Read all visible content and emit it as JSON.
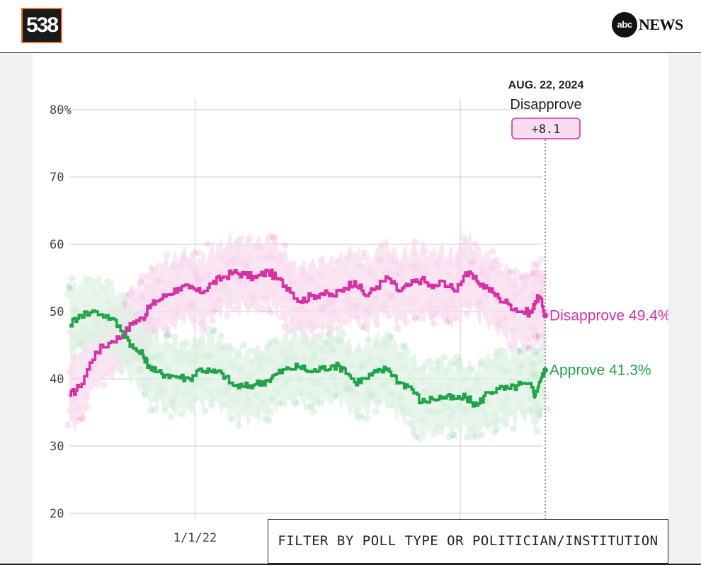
{
  "brand": {
    "logo_text": "538",
    "abc_logo_text": "abc",
    "news_text": "NEWS"
  },
  "filter_button": {
    "label": "FILTER BY POLL TYPE OR POLITICIAN/INSTITUTION"
  },
  "colors": {
    "disapprove": "#d631a5",
    "approve": "#22a34a",
    "disapprove_band": "#f8dcef",
    "approve_band": "#dff1e3",
    "grid": "#cccccc"
  },
  "chart_data": {
    "type": "line",
    "title": "",
    "xlabel": "",
    "ylabel": "",
    "x_range": [
      "2021-01-20",
      "2024-08-22"
    ],
    "ylim": [
      20,
      80
    ],
    "y_ticks": [
      20,
      30,
      40,
      50,
      60,
      70,
      80
    ],
    "y_tick_labels": [
      "20",
      "30",
      "40",
      "50",
      "60",
      "70",
      "80%"
    ],
    "x_ticks": [
      "2022-01-01",
      "2024-01-01"
    ],
    "x_tick_labels": [
      "1/1/22",
      ""
    ],
    "grid": true,
    "annotation": {
      "date": "2024-08-22",
      "date_label": "AUG. 22, 2024",
      "leader": "Disapprove",
      "margin_label": "+8.1"
    },
    "end_labels": [
      {
        "series": "Disapprove",
        "text": "Disapprove 49.4%"
      },
      {
        "series": "Approve",
        "text": "Approve 41.3%"
      }
    ],
    "series": [
      {
        "name": "Disapprove",
        "x": [
          "2021-01-20",
          "2021-02-15",
          "2021-04-01",
          "2021-05-15",
          "2021-06-15",
          "2021-07-15",
          "2021-08-10",
          "2021-08-25",
          "2021-09-15",
          "2021-10-15",
          "2021-11-15",
          "2021-12-15",
          "2022-01-15",
          "2022-02-15",
          "2022-03-15",
          "2022-04-15",
          "2022-05-15",
          "2022-06-15",
          "2022-07-20",
          "2022-08-15",
          "2022-09-15",
          "2022-10-15",
          "2022-11-15",
          "2022-12-15",
          "2023-01-15",
          "2023-02-15",
          "2023-03-15",
          "2023-04-15",
          "2023-05-15",
          "2023-06-15",
          "2023-07-15",
          "2023-08-15",
          "2023-09-15",
          "2023-10-15",
          "2023-11-15",
          "2023-12-15",
          "2024-01-15",
          "2024-02-15",
          "2024-03-15",
          "2024-04-15",
          "2024-05-15",
          "2024-06-15",
          "2024-07-15",
          "2024-07-25",
          "2024-08-05",
          "2024-08-22"
        ],
        "values": [
          37.5,
          38.8,
          44.0,
          45.6,
          46.5,
          48.5,
          49.0,
          50.5,
          51.5,
          52.5,
          53.5,
          53.5,
          52.8,
          54.2,
          55.0,
          55.8,
          55.5,
          55.0,
          56.0,
          54.8,
          53.5,
          51.5,
          52.3,
          52.7,
          52.3,
          53.5,
          54.5,
          52.3,
          53.7,
          55.0,
          53.0,
          54.0,
          54.8,
          53.5,
          54.5,
          53.0,
          55.8,
          54.5,
          53.5,
          52.0,
          51.0,
          50.0,
          49.8,
          51.5,
          52.2,
          49.4
        ]
      },
      {
        "name": "Approve",
        "x": [
          "2021-01-20",
          "2021-02-15",
          "2021-04-01",
          "2021-05-15",
          "2021-06-15",
          "2021-07-15",
          "2021-08-10",
          "2021-08-25",
          "2021-09-15",
          "2021-10-15",
          "2021-11-15",
          "2021-12-15",
          "2022-01-15",
          "2022-02-15",
          "2022-03-15",
          "2022-04-15",
          "2022-05-15",
          "2022-06-15",
          "2022-07-20",
          "2022-08-15",
          "2022-09-15",
          "2022-10-15",
          "2022-11-15",
          "2022-12-15",
          "2023-01-15",
          "2023-02-15",
          "2023-03-15",
          "2023-04-15",
          "2023-05-15",
          "2023-06-15",
          "2023-07-15",
          "2023-08-15",
          "2023-09-15",
          "2023-10-15",
          "2023-11-15",
          "2023-12-15",
          "2024-01-15",
          "2024-02-15",
          "2024-03-15",
          "2024-04-15",
          "2024-05-15",
          "2024-06-15",
          "2024-07-15",
          "2024-07-25",
          "2024-08-05",
          "2024-08-22"
        ],
        "values": [
          48.0,
          49.5,
          50.0,
          49.0,
          47.0,
          44.5,
          43.5,
          42.0,
          41.0,
          40.6,
          40.3,
          40.0,
          41.5,
          41.0,
          40.8,
          39.0,
          38.8,
          39.2,
          39.8,
          40.8,
          41.5,
          41.8,
          41.0,
          41.5,
          42.0,
          41.5,
          39.5,
          40.0,
          41.0,
          41.5,
          39.5,
          38.8,
          36.5,
          37.0,
          37.3,
          37.0,
          37.2,
          36.0,
          38.0,
          38.5,
          38.5,
          39.2,
          38.8,
          37.5,
          39.5,
          41.3
        ]
      }
    ]
  }
}
